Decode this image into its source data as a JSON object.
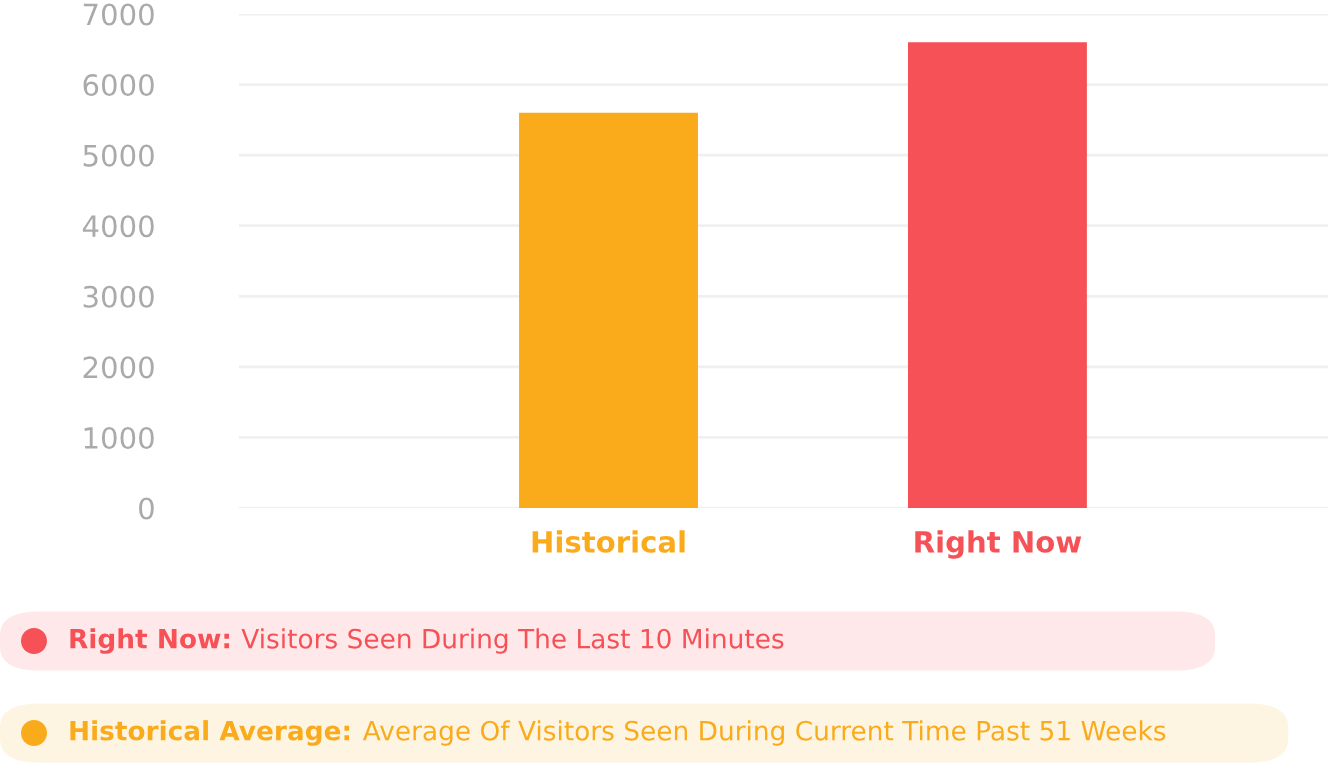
{
  "chart_data": {
    "type": "bar",
    "categories": [
      "Historical",
      "Right Now"
    ],
    "values": [
      5600,
      6600
    ],
    "colors": [
      "#faab1c",
      "#f55157"
    ],
    "ylim": [
      0,
      7000
    ],
    "yticks": [
      0,
      1000,
      2000,
      3000,
      4000,
      5000,
      6000,
      7000
    ],
    "grid": "y",
    "legend": false,
    "annotations": [
      "Right Now: Visitors Seen During The Last 10 Minutes",
      "Historical Average: Average Of Visitors Seen During Current Time Past 51 Weeks"
    ]
  }
}
